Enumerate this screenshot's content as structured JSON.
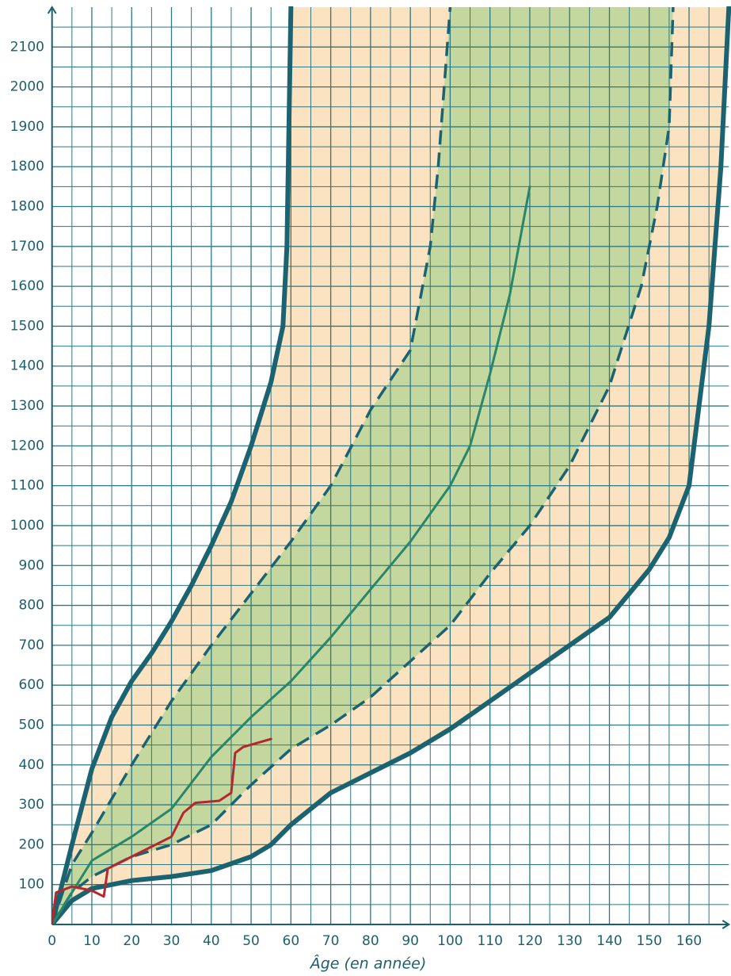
{
  "chart_data": {
    "type": "line",
    "x_label": "Âge (en année)",
    "xlim": [
      0,
      170
    ],
    "ylim": [
      0,
      2300
    ],
    "xticks": [
      0,
      10,
      20,
      30,
      40,
      50,
      60,
      70,
      80,
      90,
      100,
      110,
      120,
      130,
      140,
      150,
      160
    ],
    "yticks": [
      100,
      200,
      300,
      400,
      500,
      600,
      700,
      800,
      900,
      1000,
      1100,
      1200,
      1300,
      1400,
      1500,
      1600,
      1700,
      1800,
      {
        "value": 1900,
        "label": "1800"
      },
      {
        "value": 2000,
        "label": "1900"
      },
      {
        "value": 2100,
        "label": "2000"
      },
      {
        "value": 2200,
        "label": "2100"
      }
    ],
    "x_minor_grid": [
      5,
      15,
      25,
      35,
      45,
      55,
      65,
      75,
      85,
      95,
      105,
      115,
      125,
      135,
      145,
      155,
      165
    ],
    "y_minor_grid": [
      50,
      150,
      250,
      350,
      450,
      550,
      650,
      750,
      850,
      950,
      1050,
      1150,
      1250,
      1350,
      1450,
      1550,
      1650,
      1750,
      1850,
      1950,
      2050,
      2150,
      2250
    ],
    "grid": true,
    "grid_color": "#2c7884",
    "axis_color": "#1d5f6c",
    "series": [
      {
        "style": "thick",
        "color": "#1c6371",
        "fill": "#fbe2c0",
        "x": [
          0,
          5,
          10,
          15,
          20,
          25,
          30,
          35,
          40,
          45,
          50,
          55,
          58,
          59,
          60
        ],
        "values": [
          0,
          200,
          390,
          520,
          610,
          680,
          760,
          850,
          950,
          1060,
          1200,
          1360,
          1500,
          1700,
          2300
        ]
      },
      {
        "style": "thick",
        "color": "#1c6371",
        "x": [
          0,
          5,
          10,
          20,
          30,
          40,
          50,
          55,
          60,
          70,
          80,
          90,
          100,
          110,
          120,
          130,
          140,
          150,
          155,
          160,
          165,
          168,
          170
        ],
        "values": [
          0,
          60,
          90,
          110,
          120,
          135,
          170,
          200,
          250,
          330,
          380,
          430,
          490,
          560,
          630,
          700,
          770,
          890,
          970,
          1100,
          1500,
          1900,
          2300
        ]
      },
      {
        "style": "dashed",
        "color": "#1c6371",
        "fill": "#c3d79e",
        "x": [
          0,
          5,
          10,
          20,
          30,
          40,
          50,
          60,
          70,
          80,
          90,
          95,
          97,
          100
        ],
        "values": [
          0,
          150,
          230,
          400,
          560,
          700,
          830,
          960,
          1100,
          1290,
          1440,
          1700,
          1900,
          2300
        ]
      },
      {
        "style": "dashed",
        "color": "#1c6371",
        "x": [
          0,
          5,
          10,
          20,
          30,
          40,
          50,
          60,
          70,
          80,
          90,
          100,
          110,
          120,
          130,
          140,
          148,
          152,
          155,
          156
        ],
        "values": [
          0,
          80,
          120,
          170,
          200,
          250,
          350,
          440,
          500,
          570,
          660,
          750,
          880,
          1000,
          1150,
          1350,
          1600,
          1800,
          2000,
          2300
        ]
      },
      {
        "style": "thin",
        "color": "#2a8668",
        "x": [
          0,
          10,
          20,
          30,
          40,
          50,
          60,
          70,
          80,
          90,
          100,
          105,
          110,
          115,
          120
        ],
        "values": [
          0,
          160,
          220,
          290,
          420,
          520,
          610,
          720,
          840,
          960,
          1100,
          1200,
          1380,
          1580,
          1850
        ]
      },
      {
        "style": "thin",
        "color": "#b3282e",
        "x": [
          0,
          1,
          5,
          10,
          13,
          14,
          20,
          30,
          33,
          36,
          42,
          45,
          46,
          48,
          55
        ],
        "values": [
          0,
          80,
          95,
          85,
          70,
          140,
          170,
          220,
          280,
          305,
          310,
          330,
          430,
          445,
          465
        ]
      }
    ]
  }
}
